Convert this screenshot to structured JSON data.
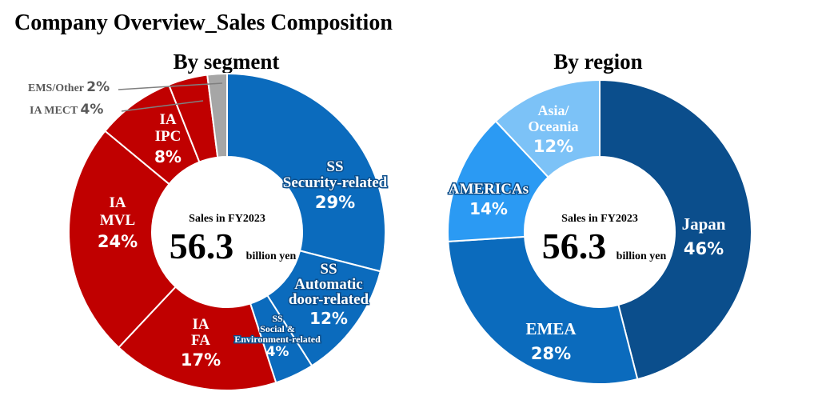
{
  "page_title": "Company Overview_Sales Composition",
  "chart_data": [
    {
      "type": "pie",
      "title": "By segment",
      "center_caption": "Sales in FY2023",
      "center_value": "56.3",
      "center_unit": "billion yen",
      "slices": [
        {
          "lines": [
            "SS",
            "Security-related"
          ],
          "value": 29,
          "pct": "29%",
          "color": "#0b6bbd"
        },
        {
          "lines": [
            "SS",
            "Automatic",
            "door-related"
          ],
          "value": 12,
          "pct": "12%",
          "color": "#0b6bbd"
        },
        {
          "lines": [
            "SS",
            "Social &",
            "Environment-related"
          ],
          "value": 4,
          "pct": "4%",
          "color": "#0b6bbd"
        },
        {
          "lines": [
            "IA",
            "FA"
          ],
          "value": 17,
          "pct": "17%",
          "color": "#c00000"
        },
        {
          "lines": [
            "IA",
            "MVL"
          ],
          "value": 24,
          "pct": "24%",
          "color": "#c00000"
        },
        {
          "lines": [
            "IA",
            "IPC"
          ],
          "value": 8,
          "pct": "8%",
          "color": "#c00000"
        },
        {
          "lines": [
            "IA MECT"
          ],
          "value": 4,
          "pct": "4%",
          "color": "#c00000"
        },
        {
          "lines": [
            "EMS/Other"
          ],
          "value": 2,
          "pct": "2%",
          "color": "#a6a6a6"
        }
      ]
    },
    {
      "type": "pie",
      "title": "By region",
      "center_caption": "Sales in FY2023",
      "center_value": "56.3",
      "center_unit": "billion yen",
      "slices": [
        {
          "lines": [
            "Japan"
          ],
          "value": 46,
          "pct": "46%",
          "color": "#0b4e8c"
        },
        {
          "lines": [
            "EMEA"
          ],
          "value": 28,
          "pct": "28%",
          "color": "#0b6bbd"
        },
        {
          "lines": [
            "AMERICAs"
          ],
          "value": 14,
          "pct": "14%",
          "color": "#2b9af3"
        },
        {
          "lines": [
            "Asia/",
            "Oceania"
          ],
          "value": 12,
          "pct": "12%",
          "color": "#7cc2f7"
        }
      ]
    }
  ]
}
